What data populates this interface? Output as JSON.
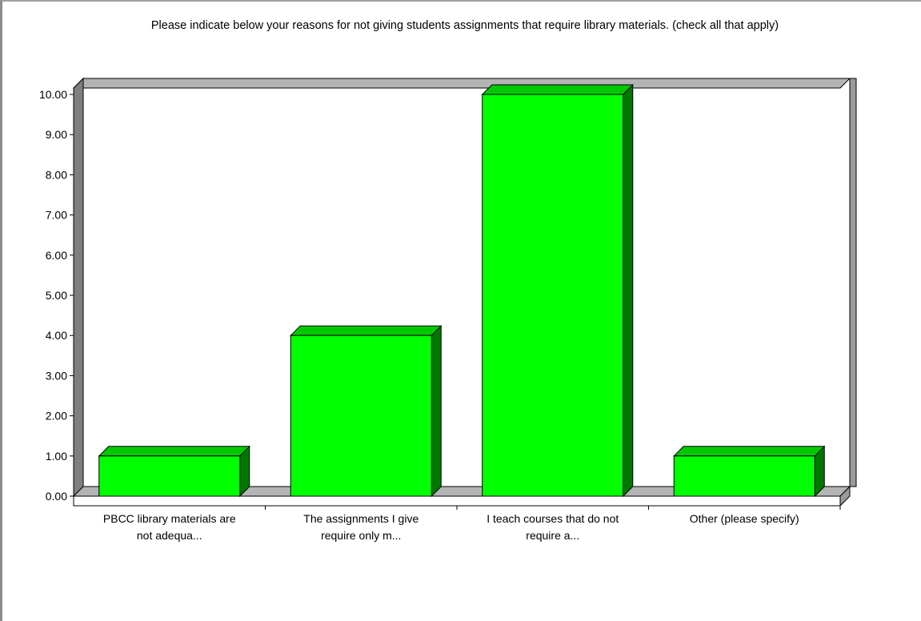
{
  "chart_data": {
    "type": "bar",
    "title": "Please indicate below your reasons for not giving students assignments that require library materials. (check all that apply)",
    "categories": [
      [
        "PBCC library materials are",
        "not adequa..."
      ],
      [
        "The assignments I give",
        "require only m..."
      ],
      [
        "I teach courses that do not",
        "require a..."
      ],
      [
        "Other (please specify)"
      ]
    ],
    "values": [
      1,
      4,
      10,
      1
    ],
    "ylim": [
      0,
      10
    ],
    "yticks": [
      "0.00",
      "1.00",
      "2.00",
      "3.00",
      "4.00",
      "5.00",
      "6.00",
      "7.00",
      "8.00",
      "9.00",
      "10.00"
    ],
    "xlabel": "",
    "ylabel": "",
    "legend": "none",
    "grid": false,
    "style": "3d",
    "colors": {
      "bar_front": "#00ff00",
      "bar_top": "#00c800",
      "bar_side": "#007800",
      "back_wall": "#ffffff",
      "left_wall": "#7f7f7f",
      "floor": "#b4b4b4"
    }
  }
}
